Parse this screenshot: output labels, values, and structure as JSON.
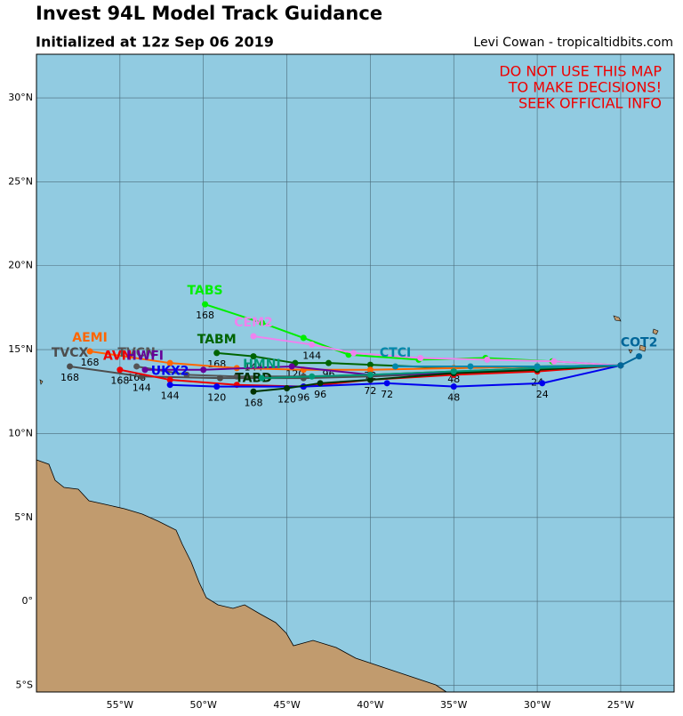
{
  "chart_data": {
    "type": "track-map",
    "title": "Invest 94L Model Track Guidance",
    "subtitle": "Initialized at 12z Sep 06 2019",
    "credit": "Levi Cowan - tropicaltidbits.com",
    "annotations": [
      "DO NOT USE THIS MAP",
      "TO MAKE DECISIONS!",
      "SEEK OFFICIAL INFO"
    ],
    "xlim": [
      -60,
      -21.8
    ],
    "ylim": [
      -5.4,
      32.6
    ],
    "xticks": [
      {
        "value": -55,
        "label": "55°W"
      },
      {
        "value": -50,
        "label": "50°W"
      },
      {
        "value": -45,
        "label": "45°W"
      },
      {
        "value": -40,
        "label": "40°W"
      },
      {
        "value": -35,
        "label": "35°W"
      },
      {
        "value": -30,
        "label": "30°W"
      },
      {
        "value": -25,
        "label": "25°W"
      }
    ],
    "yticks": [
      {
        "value": -5,
        "label": "5°S"
      },
      {
        "value": 0,
        "label": "0°"
      },
      {
        "value": 5,
        "label": "5°N"
      },
      {
        "value": 10,
        "label": "10°N"
      },
      {
        "value": 15,
        "label": "15°N"
      },
      {
        "value": 20,
        "label": "20°N"
      },
      {
        "value": 25,
        "label": "25°N"
      },
      {
        "value": 30,
        "label": "30°N"
      }
    ],
    "grid": true,
    "series": [
      {
        "name": "TABS",
        "color": "#00ee00",
        "x": [
          -25,
          -29.1,
          -33.1,
          -37.1,
          -41.3,
          -44,
          -46.5,
          -49.9
        ],
        "values": [
          14.06,
          14.3,
          14.5,
          14.4,
          14.7,
          15.7,
          16.6,
          17.7
        ],
        "hour_labels": [
          null,
          null,
          null,
          null,
          null,
          null,
          null,
          168
        ]
      },
      {
        "name": "CEM2",
        "color": "#ee82ee",
        "x": [
          -25,
          -29,
          -33,
          -37,
          -41,
          -43.5,
          -47
        ],
        "values": [
          14.06,
          14.3,
          14.4,
          14.5,
          14.8,
          15.3,
          15.8
        ],
        "hour_labels": [
          null,
          null,
          null,
          null,
          null,
          144,
          null
        ]
      },
      {
        "name": "TABM",
        "color": "#006400",
        "x": [
          -25,
          -30,
          -35,
          -40,
          -42.5,
          -44.5,
          -47,
          -49.2
        ],
        "values": [
          14.06,
          14.0,
          13.9,
          14.1,
          14.2,
          14.2,
          14.6,
          14.8
        ],
        "hour_labels": [
          null,
          null,
          48,
          72,
          96,
          120,
          144,
          168
        ]
      },
      {
        "name": "AEMI",
        "color": "#ff6600",
        "x": [
          -25,
          -30,
          -35,
          -40,
          -44,
          -48,
          -52,
          -56.8
        ],
        "values": [
          14.06,
          14.0,
          13.9,
          13.8,
          13.8,
          13.9,
          14.2,
          14.9
        ],
        "hour_labels": [
          null,
          null,
          null,
          null,
          null,
          null,
          null,
          168
        ]
      },
      {
        "name": "TVCN",
        "color": "#555555",
        "x": [
          -25,
          -30,
          -35,
          -40,
          -44,
          -48,
          -51,
          -54
        ],
        "values": [
          14.06,
          13.9,
          13.7,
          13.5,
          13.4,
          13.4,
          13.5,
          14.0
        ],
        "hour_labels": [
          null,
          null,
          null,
          null,
          null,
          null,
          null,
          168
        ]
      },
      {
        "name": "TVCX",
        "color": "#4d4d4d",
        "x": [
          -25,
          -30,
          -35,
          -40,
          -44,
          -49,
          -53.7,
          -58
        ],
        "values": [
          14.06,
          13.8,
          13.6,
          13.4,
          13.3,
          13.3,
          13.4,
          14.0
        ],
        "hour_labels": [
          null,
          null,
          null,
          null,
          null,
          null,
          144,
          168
        ]
      },
      {
        "name": "AVNI",
        "color": "#ee0000",
        "x": [
          -25,
          -30,
          -35,
          -40,
          -44,
          -48,
          -52,
          -55
        ],
        "values": [
          14.06,
          13.7,
          13.5,
          13.2,
          12.8,
          12.9,
          13.2,
          13.8
        ],
        "hour_labels": [
          null,
          24,
          null,
          null,
          96,
          null,
          null,
          168
        ]
      },
      {
        "name": "HWFI",
        "color": "#660099",
        "x": [
          -25,
          -30,
          -35,
          -40,
          -44.7,
          -50,
          -53.5
        ],
        "values": [
          14.06,
          13.9,
          13.6,
          13.5,
          14.0,
          13.8,
          13.8
        ],
        "hour_labels": [
          null,
          null,
          null,
          null,
          null,
          null,
          null
        ]
      },
      {
        "name": "UKX2",
        "color": "#0000ee",
        "x": [
          -25,
          -29.7,
          -35,
          -39,
          -44,
          -49.2,
          -52
        ],
        "values": [
          14.06,
          13.0,
          12.8,
          13.0,
          12.8,
          12.8,
          12.9
        ],
        "hour_labels": [
          null,
          24,
          48,
          72,
          null,
          120,
          144
        ]
      },
      {
        "name": "TABD",
        "color": "#003300",
        "x": [
          -25,
          -30,
          -35,
          -40,
          -43,
          -45,
          -47
        ],
        "values": [
          14.06,
          13.8,
          13.6,
          13.2,
          13.0,
          12.7,
          12.5
        ],
        "hour_labels": [
          null,
          null,
          null,
          72,
          96,
          120,
          168
        ]
      },
      {
        "name": "HMNI",
        "color": "#009977",
        "x": [
          -25,
          -30,
          -35,
          -40,
          -43.5,
          -46.5
        ],
        "values": [
          14.06,
          13.9,
          13.7,
          13.5,
          13.4,
          13.3
        ],
        "hour_labels": [
          null,
          null,
          null,
          null,
          null,
          null
        ]
      },
      {
        "name": "CTCI",
        "color": "#0088aa",
        "x": [
          -25,
          -30,
          -34,
          -38.5
        ],
        "values": [
          14.06,
          14.0,
          14.0,
          14.0
        ],
        "hour_labels": [
          null,
          null,
          null,
          null
        ]
      },
      {
        "name": "COT2",
        "color": "#006699",
        "x": [
          -25,
          -23.9
        ],
        "values": [
          14.06,
          14.6
        ],
        "hour_labels": [
          null,
          null
        ]
      }
    ]
  }
}
